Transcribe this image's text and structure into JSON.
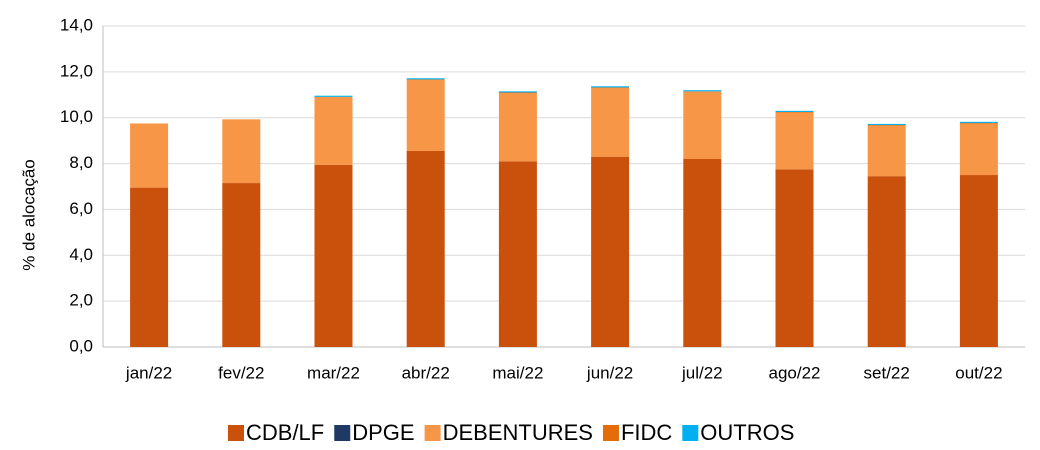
{
  "chart_data": {
    "type": "stacked_bar",
    "y_label": "% de alocação",
    "categories": [
      "jan/22",
      "fev/22",
      "mar/22",
      "abr/22",
      "mai/22",
      "jun/22",
      "jul/22",
      "ago/22",
      "set/22",
      "out/22"
    ],
    "series": [
      {
        "name": "CDB/LF",
        "color": "#C9510C",
        "values": [
          6.95,
          7.15,
          7.95,
          8.55,
          8.1,
          8.3,
          8.2,
          7.75,
          7.45,
          7.5
        ]
      },
      {
        "name": "DPGE",
        "color": "#1F3864",
        "values": [
          0,
          0,
          0,
          0,
          0,
          0,
          0,
          0,
          0,
          0
        ]
      },
      {
        "name": "DEBENTURES",
        "color": "#F79646",
        "values": [
          2.8,
          2.78,
          2.94,
          3.1,
          2.98,
          3.0,
          2.93,
          2.48,
          2.21,
          2.25
        ]
      },
      {
        "name": "FIDC",
        "color": "#E46C0A",
        "values": [
          0,
          0,
          0.02,
          0.02,
          0.02,
          0.02,
          0.02,
          0.02,
          0.02,
          0.02
        ]
      },
      {
        "name": "OUTROS",
        "color": "#00B0F0",
        "values": [
          0,
          0,
          0.05,
          0.05,
          0.05,
          0.05,
          0.05,
          0.05,
          0.05,
          0.05
        ]
      }
    ],
    "ylim": [
      0,
      14
    ],
    "yticks": [
      {
        "value": 0,
        "label": "0,0"
      },
      {
        "value": 2,
        "label": "2,0"
      },
      {
        "value": 4,
        "label": "4,0"
      },
      {
        "value": 6,
        "label": "6,0"
      },
      {
        "value": 8,
        "label": "8,0"
      },
      {
        "value": 10,
        "label": "10,0"
      },
      {
        "value": 12,
        "label": "12,0"
      },
      {
        "value": 14,
        "label": "14,0"
      }
    ],
    "grid": true,
    "legend": "bottom"
  }
}
